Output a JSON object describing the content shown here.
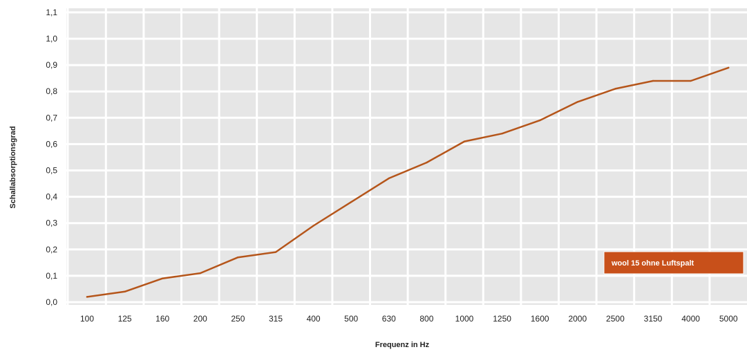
{
  "chart_data": {
    "type": "line",
    "title": "",
    "xlabel": "Frequenz in Hz",
    "ylabel": "Schallabsorptionsgrad",
    "ylim": [
      0,
      1.1
    ],
    "yticks": [
      "0,0",
      "0,1",
      "0,2",
      "0,3",
      "0,4",
      "0,5",
      "0,6",
      "0,7",
      "0,8",
      "0,9",
      "1,0",
      "1,1"
    ],
    "categories": [
      "100",
      "125",
      "160",
      "200",
      "250",
      "315",
      "400",
      "500",
      "630",
      "800",
      "1000",
      "1250",
      "1600",
      "2000",
      "2500",
      "3150",
      "4000",
      "5000"
    ],
    "grid": true,
    "legend_position": "bottom-right",
    "series": [
      {
        "name": "wool 15 ohne Luftspalt",
        "color": "#b5551a",
        "values": [
          0.02,
          0.04,
          0.09,
          0.11,
          0.17,
          0.19,
          0.29,
          0.38,
          0.47,
          0.53,
          0.61,
          0.64,
          0.69,
          0.76,
          0.81,
          0.84,
          0.84,
          0.89
        ]
      }
    ]
  },
  "colors": {
    "plot_background": "#e6e6e6",
    "grid": "#ffffff",
    "legend_fill": "#c8501a",
    "legend_border": "#ffffff"
  }
}
